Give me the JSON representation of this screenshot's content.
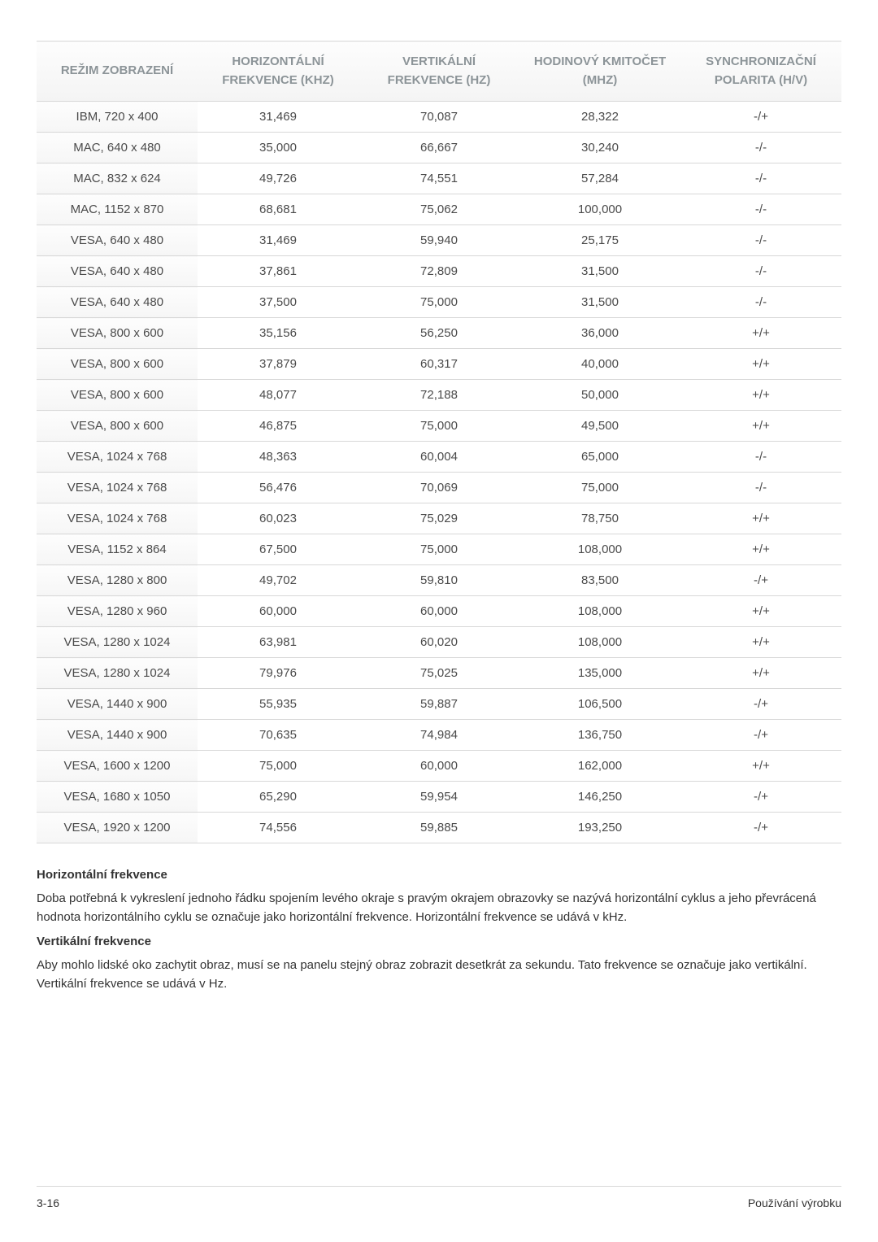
{
  "table": {
    "columns": [
      "REŽIM ZOBRAZENÍ",
      "HORIZONTÁLNÍ FREKVENCE (KHZ)",
      "VERTIKÁLNÍ FREKVENCE (HZ)",
      "HODINOVÝ KMITOČET (MHZ)",
      "SYNCHRONIZAČNÍ POLARITA (H/V)"
    ],
    "rows": [
      [
        "IBM, 720 x 400",
        "31,469",
        "70,087",
        "28,322",
        "-/+"
      ],
      [
        "MAC, 640 x 480",
        "35,000",
        "66,667",
        "30,240",
        "-/-"
      ],
      [
        "MAC, 832 x 624",
        "49,726",
        "74,551",
        "57,284",
        "-/-"
      ],
      [
        "MAC, 1152 x 870",
        "68,681",
        "75,062",
        "100,000",
        "-/-"
      ],
      [
        "VESA, 640 x 480",
        "31,469",
        "59,940",
        "25,175",
        "-/-"
      ],
      [
        "VESA, 640 x 480",
        "37,861",
        "72,809",
        "31,500",
        "-/-"
      ],
      [
        "VESA, 640 x 480",
        "37,500",
        "75,000",
        "31,500",
        "-/-"
      ],
      [
        "VESA, 800 x 600",
        "35,156",
        "56,250",
        "36,000",
        "+/+"
      ],
      [
        "VESA, 800 x 600",
        "37,879",
        "60,317",
        "40,000",
        "+/+"
      ],
      [
        "VESA, 800 x 600",
        "48,077",
        "72,188",
        "50,000",
        "+/+"
      ],
      [
        "VESA, 800 x 600",
        "46,875",
        "75,000",
        "49,500",
        "+/+"
      ],
      [
        "VESA, 1024 x 768",
        "48,363",
        "60,004",
        "65,000",
        "-/-"
      ],
      [
        "VESA, 1024 x 768",
        "56,476",
        "70,069",
        "75,000",
        "-/-"
      ],
      [
        "VESA, 1024 x 768",
        "60,023",
        "75,029",
        "78,750",
        "+/+"
      ],
      [
        "VESA, 1152 x 864",
        "67,500",
        "75,000",
        "108,000",
        "+/+"
      ],
      [
        "VESA, 1280 x 800",
        "49,702",
        "59,810",
        "83,500",
        "-/+"
      ],
      [
        "VESA, 1280 x 960",
        "60,000",
        "60,000",
        "108,000",
        "+/+"
      ],
      [
        "VESA, 1280 x 1024",
        "63,981",
        "60,020",
        "108,000",
        "+/+"
      ],
      [
        "VESA, 1280 x 1024",
        "79,976",
        "75,025",
        "135,000",
        "+/+"
      ],
      [
        "VESA, 1440 x 900",
        "55,935",
        "59,887",
        "106,500",
        "-/+"
      ],
      [
        "VESA, 1440 x 900",
        "70,635",
        "74,984",
        "136,750",
        "-/+"
      ],
      [
        "VESA, 1600 x 1200",
        "75,000",
        "60,000",
        "162,000",
        "+/+"
      ],
      [
        "VESA, 1680 x 1050",
        "65,290",
        "59,954",
        "146,250",
        "-/+"
      ],
      [
        "VESA, 1920 x 1200",
        "74,556",
        "59,885",
        "193,250",
        "-/+"
      ]
    ]
  },
  "sections": {
    "heading1": "Horizontální frekvence",
    "text1": "Doba potřebná k vykreslení jednoho řádku spojením levého okraje s pravým okrajem obrazovky se nazývá horizontální cyklus a jeho převrácená hodnota horizontálního cyklu se označuje jako horizontální frekvence. Horizontální frekvence se udává v kHz.",
    "heading2": "Vertikální frekvence",
    "text2": "Aby mohlo lidské oko zachytit obraz, musí se na panelu stejný obraz zobrazit desetkrát za sekundu. Tato frekvence se označuje jako vertikální. Vertikální frekvence se udává v Hz."
  },
  "footer": {
    "left": "3-16",
    "right": "Používání výrobku"
  },
  "styling": {
    "header_bg_top": "#fdfdfd",
    "header_bg_bottom": "#f4f4f4",
    "header_text_color": "#8c9498",
    "border_color": "#d8d8d8",
    "body_text_color": "#4a4a4a",
    "fontsize_table": 15,
    "fontsize_body": 15,
    "fontsize_footer": 14
  }
}
